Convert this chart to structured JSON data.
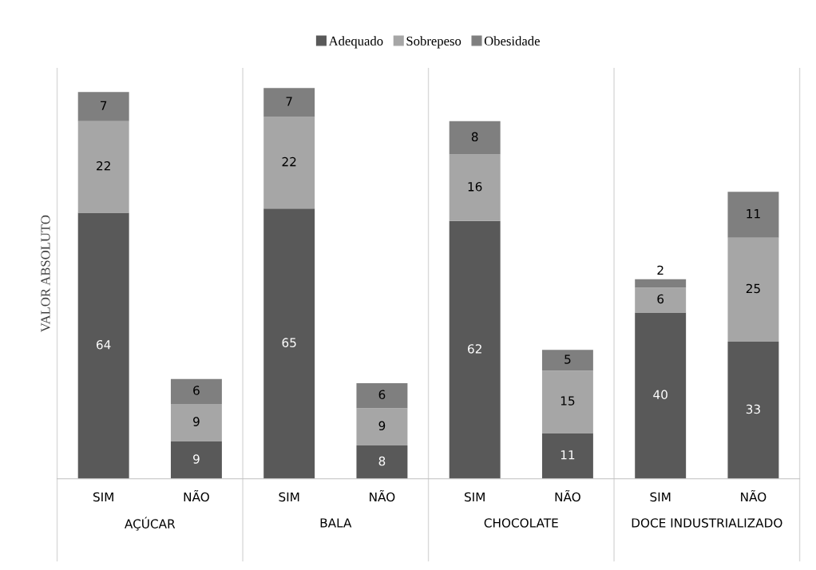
{
  "chart_data": {
    "type": "bar",
    "stacked": true,
    "ylabel": "VALOR ABSOLUTO",
    "categories": [
      "SIM",
      "NÃO",
      "SIM",
      "NÃO",
      "SIM",
      "NÃO",
      "SIM",
      "NÃO"
    ],
    "annotations": [
      "AÇÚCAR",
      "BALA",
      "CHOCOLATE",
      "DOCE INDUSTRIALIZADO"
    ],
    "series": [
      {
        "name": "Adequado",
        "color": "#595959",
        "values": [
          64,
          9,
          65,
          8,
          62,
          11,
          40,
          33
        ]
      },
      {
        "name": "Sobrepeso",
        "color": "#a6a6a6",
        "values": [
          22,
          9,
          22,
          9,
          16,
          15,
          6,
          25
        ]
      },
      {
        "name": "Obesidade",
        "color": "#7f7f7f",
        "values": [
          7,
          6,
          7,
          6,
          8,
          5,
          2,
          11
        ]
      }
    ],
    "data_labels": true,
    "legend": "top",
    "grid": false,
    "tick_labels": "x"
  }
}
